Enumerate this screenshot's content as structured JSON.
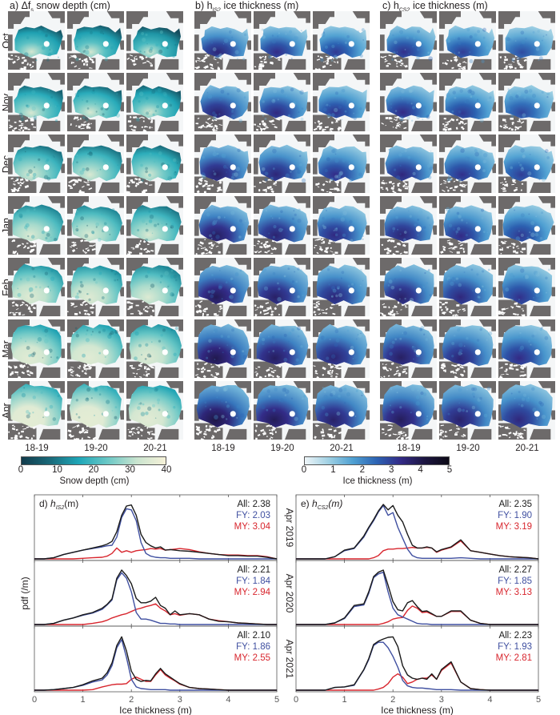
{
  "figure": {
    "panels": [
      {
        "id": "a",
        "title_prefix": "a) Δf",
        "title_sub": "s",
        "title_suffix": " snow depth (cm)",
        "colormap": "snow"
      },
      {
        "id": "b",
        "title_prefix": "b) h",
        "title_sub": "IS2",
        "title_suffix": " ice thickness (m)",
        "colormap": "ice"
      },
      {
        "id": "c",
        "title_prefix": "c) h",
        "title_sub": "CS2",
        "title_suffix": " ice thickness (m)",
        "colormap": "ice"
      }
    ],
    "months": [
      "Oct",
      "Nov",
      "Dec",
      "Jan",
      "Feb",
      "Mar",
      "Apr"
    ],
    "seasons": [
      "18-19",
      "19-20",
      "20-21"
    ],
    "colorbars": [
      {
        "name": "snow-depth-colorbar",
        "ticks": [
          "0",
          "10",
          "20",
          "30",
          "40"
        ],
        "range": [
          0,
          40
        ],
        "title": "Snow depth (cm)",
        "colors": [
          "#123c4c",
          "#1a6a7a",
          "#1fa7b8",
          "#6cc8c6",
          "#c9e4cf",
          "#f6f1d8"
        ]
      },
      {
        "name": "ice-thickness-colorbar",
        "ticks": [
          "0",
          "1",
          "2",
          "3",
          "4",
          "5"
        ],
        "range": [
          0,
          5
        ],
        "title": "Ice thickness (m)",
        "colors": [
          "#eef5f8",
          "#9fd0e3",
          "#4fa0d2",
          "#2c63b3",
          "#332a86",
          "#1c1540",
          "#0c0a16"
        ]
      }
    ],
    "land_color": "#6d6a6a",
    "ocean_color": "#ffffff"
  },
  "chart_data": [
    {
      "type": "line",
      "panel": "d",
      "title": "d) h_IS2(m)",
      "title_prefix": "d) ",
      "title_var": "h",
      "title_sub": "IS2",
      "title_unit": "(m)",
      "xlabel": "Ice thickness (m)",
      "ylabel": "pdf (/m)",
      "xlim": [
        0,
        5
      ],
      "xticks": [
        "0",
        "1",
        "2",
        "3",
        "4",
        "5"
      ],
      "colors": {
        "All": "#1a1a1a",
        "FY": "#3f4fa0",
        "MY": "#d8262e"
      },
      "x": [
        0,
        0.2,
        0.4,
        0.6,
        0.8,
        1.0,
        1.2,
        1.4,
        1.5,
        1.6,
        1.7,
        1.8,
        1.9,
        2.0,
        2.1,
        2.2,
        2.3,
        2.4,
        2.5,
        2.6,
        2.7,
        2.8,
        2.9,
        3.0,
        3.2,
        3.4,
        3.6,
        3.8,
        4.0,
        4.2,
        4.4,
        4.6,
        4.8,
        5.0
      ],
      "subplots": [
        {
          "label": "Apr 2019",
          "stats": {
            "All": "All: 2.38",
            "FY": "FY: 2.03",
            "MY": "MY: 3.04"
          },
          "series": [
            {
              "name": "All",
              "values": [
                0,
                0,
                0.02,
                0.08,
                0.12,
                0.16,
                0.2,
                0.24,
                0.27,
                0.32,
                0.5,
                0.8,
                0.97,
                0.99,
                0.8,
                0.45,
                0.3,
                0.24,
                0.2,
                0.22,
                0.16,
                0.17,
                0.16,
                0.15,
                0.14,
                0.12,
                0.1,
                0.08,
                0.06,
                0.06,
                0.05,
                0.05,
                0.03,
                0
              ]
            },
            {
              "name": "FY",
              "values": [
                0,
                0,
                0.02,
                0.08,
                0.12,
                0.16,
                0.19,
                0.22,
                0.24,
                0.25,
                0.4,
                0.76,
                0.92,
                0.9,
                0.7,
                0.3,
                0.1,
                0.05,
                0.03,
                0.02,
                0.02,
                0.01,
                0.01,
                0.01,
                0.01,
                0,
                0,
                0,
                0,
                0,
                0,
                0,
                0,
                0
              ]
            },
            {
              "name": "MY",
              "values": [
                0,
                0,
                0,
                0,
                0,
                0.01,
                0.02,
                0.03,
                0.05,
                0.1,
                0.2,
                0.12,
                0.15,
                0.12,
                0.15,
                0.16,
                0.17,
                0.19,
                0.18,
                0.19,
                0.16,
                0.17,
                0.18,
                0.19,
                0.17,
                0.13,
                0.1,
                0.08,
                0.07,
                0.07,
                0.06,
                0.06,
                0.04,
                0
              ]
            }
          ]
        },
        {
          "label": "Apr 2020",
          "stats": {
            "All": "All: 2.21",
            "FY": "FY: 1.84",
            "MY": "MY: 2.94"
          },
          "series": [
            {
              "name": "All",
              "values": [
                0,
                0,
                0.02,
                0.08,
                0.12,
                0.18,
                0.22,
                0.3,
                0.37,
                0.47,
                0.85,
                1.0,
                0.9,
                0.75,
                0.48,
                0.4,
                0.4,
                0.43,
                0.5,
                0.35,
                0.3,
                0.18,
                0.25,
                0.18,
                0.2,
                0.18,
                0.1,
                0.06,
                0.05,
                0.03,
                0.02,
                0.01,
                0,
                0
              ]
            },
            {
              "name": "FY",
              "values": [
                0,
                0,
                0.02,
                0.08,
                0.12,
                0.17,
                0.21,
                0.28,
                0.36,
                0.45,
                0.82,
                0.95,
                0.85,
                0.6,
                0.22,
                0.1,
                0.1,
                0.08,
                0.05,
                0.02,
                0.02,
                0.01,
                0.01,
                0,
                0,
                0,
                0,
                0,
                0,
                0,
                0,
                0,
                0,
                0
              ]
            },
            {
              "name": "MY",
              "values": [
                0,
                0,
                0,
                0,
                0,
                0,
                0.02,
                0.05,
                0.08,
                0.12,
                0.15,
                0.18,
                0.2,
                0.24,
                0.28,
                0.3,
                0.33,
                0.35,
                0.38,
                0.3,
                0.25,
                0.18,
                0.2,
                0.17,
                0.2,
                0.18,
                0.1,
                0.07,
                0.05,
                0.03,
                0.02,
                0.01,
                0,
                0
              ]
            }
          ]
        },
        {
          "label": "Apr 2021",
          "stats": {
            "All": "All: 2.10",
            "FY": "FY: 1.86",
            "MY": "MY: 2.55"
          },
          "series": [
            {
              "name": "All",
              "values": [
                0,
                0,
                0.01,
                0.03,
                0.05,
                0.1,
                0.17,
                0.22,
                0.32,
                0.5,
                0.82,
                0.98,
                0.72,
                0.35,
                0.2,
                0.16,
                0.18,
                0.17,
                0.3,
                0.4,
                0.3,
                0.24,
                0.18,
                0.12,
                0.05,
                0.03,
                0.02,
                0.01,
                0,
                0,
                0,
                0,
                0,
                0
              ]
            },
            {
              "name": "FY",
              "values": [
                0,
                0,
                0.01,
                0.03,
                0.05,
                0.09,
                0.15,
                0.19,
                0.28,
                0.45,
                0.78,
                0.93,
                0.6,
                0.2,
                0.06,
                0.03,
                0.02,
                0.01,
                0.01,
                0.01,
                0.01,
                0,
                0,
                0,
                0,
                0,
                0,
                0,
                0,
                0,
                0,
                0,
                0,
                0
              ]
            },
            {
              "name": "MY",
              "values": [
                0,
                0,
                0,
                0,
                0,
                0,
                0.01,
                0.06,
                0.08,
                0.1,
                0.11,
                0.11,
                0.12,
                0.2,
                0.24,
                0.2,
                0.16,
                0.16,
                0.28,
                0.38,
                0.28,
                0.22,
                0.17,
                0.11,
                0.05,
                0.03,
                0.02,
                0.01,
                0,
                0,
                0,
                0,
                0,
                0
              ]
            }
          ]
        }
      ]
    },
    {
      "type": "line",
      "panel": "e",
      "title": "e) h_CS2(m)",
      "title_prefix": "e) ",
      "title_var": "h",
      "title_sub": "CS2",
      "title_unit": "(m)",
      "xlabel": "Ice thickness (m)",
      "ylabel": "",
      "xlim": [
        0,
        5
      ],
      "xticks": [
        "0",
        "1",
        "2",
        "3",
        "4",
        "5"
      ],
      "colors": {
        "All": "#1a1a1a",
        "FY": "#3f4fa0",
        "MY": "#d8262e"
      },
      "x": [
        0,
        0.2,
        0.4,
        0.6,
        0.8,
        1.0,
        1.2,
        1.4,
        1.5,
        1.6,
        1.7,
        1.8,
        1.9,
        2.0,
        2.1,
        2.2,
        2.3,
        2.4,
        2.5,
        2.6,
        2.7,
        2.8,
        2.9,
        3.0,
        3.2,
        3.4,
        3.6,
        3.8,
        4.0,
        4.2,
        4.4,
        4.6,
        4.8,
        5.0
      ],
      "subplots": [
        {
          "label": "Apr 2019",
          "stats": {
            "All": "All: 2.35",
            "FY": "FY: 1.90",
            "MY": "MY: 3.19"
          },
          "series": [
            {
              "name": "All",
              "values": [
                0,
                0,
                0,
                0,
                0.04,
                0.16,
                0.2,
                0.42,
                0.58,
                0.72,
                0.88,
                1.0,
                0.9,
                0.98,
                0.8,
                0.68,
                0.45,
                0.25,
                0.2,
                0.2,
                0.22,
                0.2,
                0.13,
                0.17,
                0.22,
                0.35,
                0.15,
                0.12,
                0.09,
                0.06,
                0.04,
                0.03,
                0.02,
                0
              ]
            },
            {
              "name": "FY",
              "values": [
                0,
                0,
                0,
                0,
                0.04,
                0.15,
                0.19,
                0.4,
                0.56,
                0.7,
                0.86,
                0.98,
                0.8,
                0.85,
                0.58,
                0.38,
                0.18,
                0.06,
                0.02,
                0.01,
                0.01,
                0.01,
                0.01,
                0.01,
                0.01,
                0.02,
                0.01,
                0,
                0,
                0,
                0,
                0,
                0,
                0
              ]
            },
            {
              "name": "MY",
              "values": [
                0,
                0,
                0,
                0,
                0,
                0,
                0,
                0,
                0,
                0.02,
                0.06,
                0.15,
                0.18,
                0.18,
                0.19,
                0.19,
                0.2,
                0.21,
                0.2,
                0.2,
                0.21,
                0.2,
                0.12,
                0.16,
                0.21,
                0.33,
                0.15,
                0.12,
                0.09,
                0.06,
                0.04,
                0.03,
                0.02,
                0
              ]
            }
          ]
        },
        {
          "label": "Apr 2020",
          "stats": {
            "All": "All: 2.27",
            "FY": "FY: 1.85",
            "MY": "MY: 3.13"
          },
          "series": [
            {
              "name": "All",
              "values": [
                0,
                0,
                0,
                0,
                0.03,
                0.12,
                0.35,
                0.38,
                0.6,
                0.88,
                0.96,
                1.0,
                0.72,
                0.42,
                0.27,
                0.25,
                0.4,
                0.44,
                0.33,
                0.24,
                0.25,
                0.2,
                0.15,
                0.15,
                0.25,
                0.25,
                0.08,
                0.02,
                0,
                0,
                0,
                0,
                0,
                0
              ]
            },
            {
              "name": "FY",
              "values": [
                0,
                0,
                0,
                0,
                0.03,
                0.11,
                0.33,
                0.36,
                0.57,
                0.86,
                0.93,
                0.96,
                0.6,
                0.3,
                0.18,
                0.14,
                0.1,
                0.06,
                0.02,
                0.01,
                0.01,
                0,
                0,
                0,
                0,
                0,
                0,
                0,
                0,
                0,
                0,
                0,
                0,
                0
              ]
            },
            {
              "name": "MY",
              "values": [
                0,
                0,
                0,
                0,
                0,
                0,
                0,
                0,
                0,
                0,
                0,
                0.02,
                0.05,
                0.1,
                0.12,
                0.13,
                0.26,
                0.34,
                0.3,
                0.22,
                0.23,
                0.19,
                0.15,
                0.15,
                0.24,
                0.24,
                0.08,
                0.02,
                0,
                0,
                0,
                0,
                0,
                0
              ]
            }
          ]
        },
        {
          "label": "Apr 2021",
          "stats": {
            "All": "All: 2.23",
            "FY": "FY: 1.93",
            "MY": "MY: 2.81"
          },
          "series": [
            {
              "name": "All",
              "values": [
                0,
                0,
                0,
                0,
                0.05,
                0.06,
                0.1,
                0.38,
                0.58,
                0.84,
                0.9,
                0.94,
                0.97,
                0.98,
                0.8,
                0.45,
                0.28,
                0.22,
                0.2,
                0.22,
                0.2,
                0.3,
                0.2,
                0.38,
                0.52,
                0.15,
                0.03,
                0.01,
                0,
                0,
                0,
                0,
                0,
                0
              ]
            },
            {
              "name": "FY",
              "values": [
                0,
                0,
                0,
                0,
                0.05,
                0.06,
                0.09,
                0.37,
                0.56,
                0.82,
                0.88,
                0.88,
                0.78,
                0.62,
                0.42,
                0.18,
                0.08,
                0.05,
                0.04,
                0.04,
                0.03,
                0.02,
                0.01,
                0.01,
                0.01,
                0,
                0,
                0,
                0,
                0,
                0,
                0,
                0,
                0,
                0
              ]
            },
            {
              "name": "MY",
              "values": [
                0,
                0,
                0,
                0,
                0,
                0,
                0,
                0,
                0,
                0,
                0.02,
                0.05,
                0.12,
                0.24,
                0.3,
                0.24,
                0.12,
                0.15,
                0.2,
                0.22,
                0.22,
                0.28,
                0.2,
                0.36,
                0.5,
                0.15,
                0.03,
                0.01,
                0,
                0,
                0,
                0,
                0,
                0
              ]
            }
          ]
        }
      ]
    }
  ]
}
